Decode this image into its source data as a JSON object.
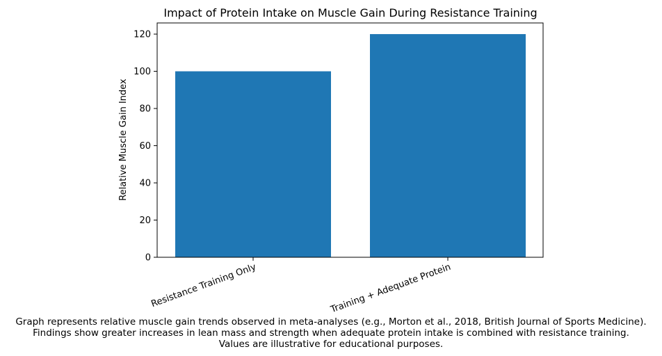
{
  "chart_data": {
    "type": "bar",
    "title": "Impact of Protein Intake on Muscle Gain During Resistance Training",
    "xlabel": "",
    "ylabel": "Relative Muscle Gain Index",
    "categories": [
      "Resistance Training Only",
      "Training + Adequate Protein"
    ],
    "values": [
      100,
      120
    ],
    "ylim": [
      0,
      126
    ],
    "yticks": [
      0,
      20,
      40,
      60,
      80,
      100,
      120
    ],
    "bar_color": "#1f77b4",
    "grid": false,
    "xtick_rotation_deg": 20
  },
  "caption": {
    "line1": "Graph represents relative muscle gain trends observed in meta-analyses (e.g., Morton et al., 2018, British Journal of Sports Medicine).",
    "line2": "Findings show greater increases in lean mass and strength when adequate protein intake is combined with resistance training.",
    "line3": "Values are illustrative for educational purposes."
  }
}
